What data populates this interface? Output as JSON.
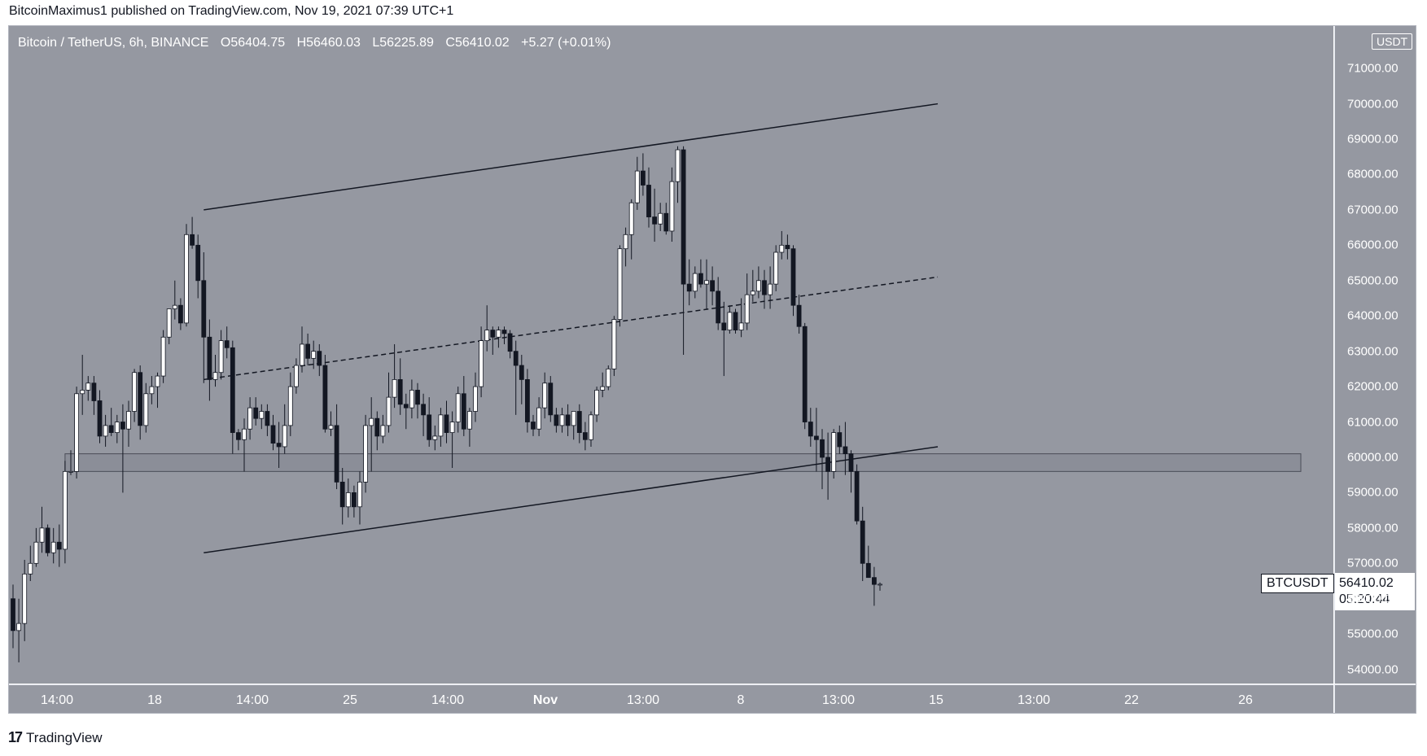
{
  "header": {
    "published_line": "BitcoinMaximus1 published on TradingView.com, Nov 19, 2021 07:39 UTC+1"
  },
  "legend": {
    "symbol": "Bitcoin / TetherUS, 6h, BINANCE",
    "o_label": "O",
    "o_value": "56404.75",
    "h_label": "H",
    "h_value": "56460.03",
    "l_label": "L",
    "l_value": "56225.89",
    "c_label": "C",
    "c_value": "56410.02",
    "change": "+5.27 (+0.01%)"
  },
  "axis": {
    "currency": "USDT",
    "price_ticks": [
      "71000.00",
      "70000.00",
      "69000.00",
      "68000.00",
      "67000.00",
      "66000.00",
      "65000.00",
      "64000.00",
      "63000.00",
      "62000.00",
      "61000.00",
      "60000.00",
      "59000.00",
      "58000.00",
      "57000.00",
      "56000.00",
      "55000.00",
      "54000.00"
    ],
    "time_ticks": [
      {
        "label": "14:00",
        "bold": false
      },
      {
        "label": "18",
        "bold": false
      },
      {
        "label": "14:00",
        "bold": false
      },
      {
        "label": "25",
        "bold": false
      },
      {
        "label": "14:00",
        "bold": false
      },
      {
        "label": "Nov",
        "bold": true
      },
      {
        "label": "13:00",
        "bold": false
      },
      {
        "label": "8",
        "bold": false
      },
      {
        "label": "13:00",
        "bold": false
      },
      {
        "label": "15",
        "bold": false
      },
      {
        "label": "13:00",
        "bold": false
      },
      {
        "label": "22",
        "bold": false
      },
      {
        "label": "26",
        "bold": false
      }
    ]
  },
  "price_label": {
    "symbol": "BTCUSDT",
    "last_price": "56410.02",
    "countdown": "05:20:44"
  },
  "footer": {
    "brand": "TradingView",
    "logo_mark": "17"
  },
  "colors": {
    "background": "#9598a1",
    "up_candle": "#ffffff",
    "down_candle": "#131722",
    "trendline": "#131722",
    "zone_fill": "rgba(120,123,134,0.35)"
  },
  "chart_data": {
    "type": "candlestick",
    "title": "Bitcoin / TetherUS, 6h, BINANCE",
    "ylabel": "USDT",
    "ylim": [
      53600,
      72200
    ],
    "candles": [
      {
        "o": 56000,
        "h": 56400,
        "l": 54600,
        "c": 55100
      },
      {
        "o": 55100,
        "h": 56000,
        "l": 54200,
        "c": 55300
      },
      {
        "o": 55300,
        "h": 57100,
        "l": 54800,
        "c": 56700
      },
      {
        "o": 56700,
        "h": 57500,
        "l": 56500,
        "c": 57000
      },
      {
        "o": 57000,
        "h": 58000,
        "l": 56900,
        "c": 57600
      },
      {
        "o": 57600,
        "h": 58600,
        "l": 57300,
        "c": 58000
      },
      {
        "o": 58000,
        "h": 58100,
        "l": 57200,
        "c": 57300
      },
      {
        "o": 57300,
        "h": 58000,
        "l": 57000,
        "c": 57600
      },
      {
        "o": 57600,
        "h": 58100,
        "l": 56900,
        "c": 57400
      },
      {
        "o": 57400,
        "h": 59900,
        "l": 57000,
        "c": 59600
      },
      {
        "o": 59600,
        "h": 60200,
        "l": 59500,
        "c": 59600
      },
      {
        "o": 59600,
        "h": 62000,
        "l": 59400,
        "c": 61800
      },
      {
        "o": 61800,
        "h": 62900,
        "l": 61200,
        "c": 61900
      },
      {
        "o": 61900,
        "h": 62300,
        "l": 61600,
        "c": 62100
      },
      {
        "o": 62100,
        "h": 62300,
        "l": 61200,
        "c": 61600
      },
      {
        "o": 61600,
        "h": 61900,
        "l": 60400,
        "c": 60600
      },
      {
        "o": 60600,
        "h": 61200,
        "l": 60300,
        "c": 60900
      },
      {
        "o": 60900,
        "h": 61400,
        "l": 60600,
        "c": 60700
      },
      {
        "o": 60700,
        "h": 61200,
        "l": 60400,
        "c": 61000
      },
      {
        "o": 61000,
        "h": 61500,
        "l": 59000,
        "c": 60800
      },
      {
        "o": 60800,
        "h": 61600,
        "l": 60300,
        "c": 61300
      },
      {
        "o": 61300,
        "h": 62500,
        "l": 61000,
        "c": 62400
      },
      {
        "o": 62400,
        "h": 62600,
        "l": 60500,
        "c": 60900
      },
      {
        "o": 60900,
        "h": 62100,
        "l": 60700,
        "c": 61800
      },
      {
        "o": 61800,
        "h": 62300,
        "l": 61500,
        "c": 62000
      },
      {
        "o": 62000,
        "h": 62400,
        "l": 61400,
        "c": 62300
      },
      {
        "o": 62300,
        "h": 63600,
        "l": 62100,
        "c": 63400
      },
      {
        "o": 63400,
        "h": 64200,
        "l": 63200,
        "c": 64200
      },
      {
        "o": 64200,
        "h": 65000,
        "l": 63900,
        "c": 64300
      },
      {
        "o": 64300,
        "h": 64500,
        "l": 63600,
        "c": 63800
      },
      {
        "o": 63800,
        "h": 66600,
        "l": 63700,
        "c": 66300
      },
      {
        "o": 66300,
        "h": 66800,
        "l": 65900,
        "c": 66000
      },
      {
        "o": 66000,
        "h": 66300,
        "l": 64500,
        "c": 65000
      },
      {
        "o": 65000,
        "h": 65800,
        "l": 62100,
        "c": 63400
      },
      {
        "o": 63400,
        "h": 63900,
        "l": 61600,
        "c": 62200
      },
      {
        "o": 62200,
        "h": 62900,
        "l": 62000,
        "c": 62400
      },
      {
        "o": 62400,
        "h": 63600,
        "l": 62200,
        "c": 63300
      },
      {
        "o": 63300,
        "h": 63700,
        "l": 62800,
        "c": 63100
      },
      {
        "o": 63100,
        "h": 63300,
        "l": 60100,
        "c": 60700
      },
      {
        "o": 60700,
        "h": 60800,
        "l": 60200,
        "c": 60500
      },
      {
        "o": 60500,
        "h": 61100,
        "l": 59600,
        "c": 60800
      },
      {
        "o": 60800,
        "h": 61700,
        "l": 60500,
        "c": 61400
      },
      {
        "o": 61400,
        "h": 61700,
        "l": 60900,
        "c": 61100
      },
      {
        "o": 61100,
        "h": 61500,
        "l": 60800,
        "c": 61300
      },
      {
        "o": 61300,
        "h": 61500,
        "l": 60600,
        "c": 60900
      },
      {
        "o": 60900,
        "h": 61200,
        "l": 60200,
        "c": 60400
      },
      {
        "o": 60400,
        "h": 61000,
        "l": 59700,
        "c": 60300
      },
      {
        "o": 60300,
        "h": 61500,
        "l": 60100,
        "c": 60900
      },
      {
        "o": 60900,
        "h": 62400,
        "l": 60600,
        "c": 62000
      },
      {
        "o": 62000,
        "h": 62800,
        "l": 61800,
        "c": 62600
      },
      {
        "o": 62600,
        "h": 63700,
        "l": 62400,
        "c": 63200
      },
      {
        "o": 63200,
        "h": 63500,
        "l": 62600,
        "c": 62800
      },
      {
        "o": 62800,
        "h": 63300,
        "l": 62500,
        "c": 63000
      },
      {
        "o": 63000,
        "h": 63200,
        "l": 62300,
        "c": 62600
      },
      {
        "o": 62600,
        "h": 62900,
        "l": 60700,
        "c": 60800
      },
      {
        "o": 60800,
        "h": 61300,
        "l": 60600,
        "c": 60900
      },
      {
        "o": 60900,
        "h": 61500,
        "l": 59100,
        "c": 59300
      },
      {
        "o": 59300,
        "h": 59700,
        "l": 58100,
        "c": 58600
      },
      {
        "o": 58600,
        "h": 59400,
        "l": 58300,
        "c": 59000
      },
      {
        "o": 59000,
        "h": 59200,
        "l": 58300,
        "c": 58600
      },
      {
        "o": 58600,
        "h": 59600,
        "l": 58100,
        "c": 59300
      },
      {
        "o": 59300,
        "h": 61200,
        "l": 59000,
        "c": 60900
      },
      {
        "o": 60900,
        "h": 61700,
        "l": 59600,
        "c": 61100
      },
      {
        "o": 61100,
        "h": 61300,
        "l": 60200,
        "c": 60600
      },
      {
        "o": 60600,
        "h": 61200,
        "l": 60400,
        "c": 60900
      },
      {
        "o": 60900,
        "h": 62400,
        "l": 60700,
        "c": 61700
      },
      {
        "o": 61700,
        "h": 63200,
        "l": 61400,
        "c": 62200
      },
      {
        "o": 62200,
        "h": 62800,
        "l": 61200,
        "c": 61500
      },
      {
        "o": 61500,
        "h": 61800,
        "l": 60800,
        "c": 61400
      },
      {
        "o": 61400,
        "h": 62200,
        "l": 61100,
        "c": 61900
      },
      {
        "o": 61900,
        "h": 62100,
        "l": 61100,
        "c": 61500
      },
      {
        "o": 61500,
        "h": 61800,
        "l": 60600,
        "c": 61200
      },
      {
        "o": 61200,
        "h": 61700,
        "l": 60300,
        "c": 60500
      },
      {
        "o": 60500,
        "h": 60900,
        "l": 60200,
        "c": 60600
      },
      {
        "o": 60600,
        "h": 61400,
        "l": 60300,
        "c": 61200
      },
      {
        "o": 61200,
        "h": 61600,
        "l": 60400,
        "c": 60700
      },
      {
        "o": 60700,
        "h": 61300,
        "l": 59700,
        "c": 61000
      },
      {
        "o": 61000,
        "h": 62000,
        "l": 60700,
        "c": 61800
      },
      {
        "o": 61800,
        "h": 62300,
        "l": 60600,
        "c": 60800
      },
      {
        "o": 60800,
        "h": 61400,
        "l": 60300,
        "c": 61300
      },
      {
        "o": 61300,
        "h": 62400,
        "l": 61000,
        "c": 62000
      },
      {
        "o": 62000,
        "h": 63700,
        "l": 61700,
        "c": 63300
      },
      {
        "o": 63300,
        "h": 64300,
        "l": 63000,
        "c": 63600
      },
      {
        "o": 63600,
        "h": 63700,
        "l": 62900,
        "c": 63400
      },
      {
        "o": 63400,
        "h": 63700,
        "l": 63100,
        "c": 63600
      },
      {
        "o": 63600,
        "h": 63700,
        "l": 63200,
        "c": 63500
      },
      {
        "o": 63500,
        "h": 63600,
        "l": 62800,
        "c": 63000
      },
      {
        "o": 63000,
        "h": 63300,
        "l": 61200,
        "c": 62600
      },
      {
        "o": 62600,
        "h": 62900,
        "l": 61500,
        "c": 62200
      },
      {
        "o": 62200,
        "h": 62500,
        "l": 60700,
        "c": 61000
      },
      {
        "o": 61000,
        "h": 61200,
        "l": 60600,
        "c": 60800
      },
      {
        "o": 60800,
        "h": 61700,
        "l": 60600,
        "c": 61400
      },
      {
        "o": 61400,
        "h": 62400,
        "l": 61100,
        "c": 62100
      },
      {
        "o": 62100,
        "h": 62300,
        "l": 61000,
        "c": 61200
      },
      {
        "o": 61200,
        "h": 61400,
        "l": 60700,
        "c": 60900
      },
      {
        "o": 60900,
        "h": 61400,
        "l": 60700,
        "c": 61200
      },
      {
        "o": 61200,
        "h": 61500,
        "l": 60600,
        "c": 60900
      },
      {
        "o": 60900,
        "h": 61300,
        "l": 60500,
        "c": 61300
      },
      {
        "o": 61300,
        "h": 61500,
        "l": 60400,
        "c": 60700
      },
      {
        "o": 60700,
        "h": 61000,
        "l": 60200,
        "c": 60500
      },
      {
        "o": 60500,
        "h": 61300,
        "l": 60300,
        "c": 61200
      },
      {
        "o": 61200,
        "h": 62000,
        "l": 61000,
        "c": 61900
      },
      {
        "o": 61900,
        "h": 62400,
        "l": 61700,
        "c": 62000
      },
      {
        "o": 62000,
        "h": 62600,
        "l": 61900,
        "c": 62500
      },
      {
        "o": 62500,
        "h": 64000,
        "l": 62300,
        "c": 63900
      },
      {
        "o": 63900,
        "h": 66000,
        "l": 63700,
        "c": 65900
      },
      {
        "o": 65900,
        "h": 66500,
        "l": 65400,
        "c": 66300
      },
      {
        "o": 66300,
        "h": 67300,
        "l": 65600,
        "c": 67200
      },
      {
        "o": 67200,
        "h": 68500,
        "l": 67000,
        "c": 68100
      },
      {
        "o": 68100,
        "h": 68600,
        "l": 67400,
        "c": 67700
      },
      {
        "o": 67700,
        "h": 68200,
        "l": 66500,
        "c": 66800
      },
      {
        "o": 66800,
        "h": 67600,
        "l": 66100,
        "c": 66600
      },
      {
        "o": 66600,
        "h": 67200,
        "l": 66400,
        "c": 66900
      },
      {
        "o": 66900,
        "h": 67200,
        "l": 66300,
        "c": 66400
      },
      {
        "o": 66400,
        "h": 68200,
        "l": 66100,
        "c": 67800
      },
      {
        "o": 67800,
        "h": 68800,
        "l": 67200,
        "c": 68700
      },
      {
        "o": 68700,
        "h": 68800,
        "l": 62900,
        "c": 64900
      },
      {
        "o": 64900,
        "h": 65600,
        "l": 64300,
        "c": 64700
      },
      {
        "o": 64700,
        "h": 65400,
        "l": 64500,
        "c": 65200
      },
      {
        "o": 65200,
        "h": 65600,
        "l": 64800,
        "c": 64900
      },
      {
        "o": 64900,
        "h": 65600,
        "l": 64200,
        "c": 65000
      },
      {
        "o": 65000,
        "h": 65400,
        "l": 64300,
        "c": 64700
      },
      {
        "o": 64700,
        "h": 65100,
        "l": 63600,
        "c": 63800
      },
      {
        "o": 63800,
        "h": 64400,
        "l": 62300,
        "c": 63600
      },
      {
        "o": 63600,
        "h": 64300,
        "l": 63500,
        "c": 64100
      },
      {
        "o": 64100,
        "h": 64200,
        "l": 63500,
        "c": 63600
      },
      {
        "o": 63600,
        "h": 64500,
        "l": 63400,
        "c": 63800
      },
      {
        "o": 63800,
        "h": 65200,
        "l": 63600,
        "c": 64600
      },
      {
        "o": 64600,
        "h": 65300,
        "l": 64400,
        "c": 64700
      },
      {
        "o": 64700,
        "h": 65400,
        "l": 64500,
        "c": 65000
      },
      {
        "o": 65000,
        "h": 65300,
        "l": 64200,
        "c": 64600
      },
      {
        "o": 64600,
        "h": 65400,
        "l": 64200,
        "c": 64900
      },
      {
        "o": 64900,
        "h": 66000,
        "l": 64700,
        "c": 65800
      },
      {
        "o": 65800,
        "h": 66400,
        "l": 65600,
        "c": 66000
      },
      {
        "o": 66000,
        "h": 66300,
        "l": 65600,
        "c": 65900
      },
      {
        "o": 65900,
        "h": 66000,
        "l": 64000,
        "c": 64300
      },
      {
        "o": 64300,
        "h": 64600,
        "l": 63500,
        "c": 63700
      },
      {
        "o": 63700,
        "h": 63800,
        "l": 60800,
        "c": 61000
      },
      {
        "o": 61000,
        "h": 61400,
        "l": 60300,
        "c": 60600
      },
      {
        "o": 60600,
        "h": 61400,
        "l": 59600,
        "c": 60500
      },
      {
        "o": 60500,
        "h": 60800,
        "l": 59100,
        "c": 60000
      },
      {
        "o": 60000,
        "h": 60700,
        "l": 58800,
        "c": 59600
      },
      {
        "o": 59600,
        "h": 60800,
        "l": 59400,
        "c": 60700
      },
      {
        "o": 60700,
        "h": 60900,
        "l": 60100,
        "c": 60300
      },
      {
        "o": 60300,
        "h": 61000,
        "l": 59500,
        "c": 60100
      },
      {
        "o": 60100,
        "h": 60200,
        "l": 59000,
        "c": 59600
      },
      {
        "o": 59600,
        "h": 59800,
        "l": 58100,
        "c": 58200
      },
      {
        "o": 58200,
        "h": 58600,
        "l": 56500,
        "c": 57000
      },
      {
        "o": 57000,
        "h": 57500,
        "l": 56600,
        "c": 56600
      },
      {
        "o": 56600,
        "h": 56900,
        "l": 55800,
        "c": 56404.75
      },
      {
        "o": 56404.75,
        "h": 56460.03,
        "l": 56225.89,
        "c": 56410.02
      }
    ],
    "annotations": {
      "channel_top": [
        {
          "i": 33,
          "p": 67000
        },
        {
          "i": 160,
          "p": 70000
        }
      ],
      "channel_mid": [
        {
          "i": 33,
          "p": 62200
        },
        {
          "i": 160,
          "p": 65100
        }
      ],
      "channel_bottom": [
        {
          "i": 33,
          "p": 57300
        },
        {
          "i": 160,
          "p": 60300
        }
      ],
      "support_zone": {
        "from": 59600,
        "to": 60100,
        "i_start": 9,
        "i_end": 195
      }
    }
  }
}
